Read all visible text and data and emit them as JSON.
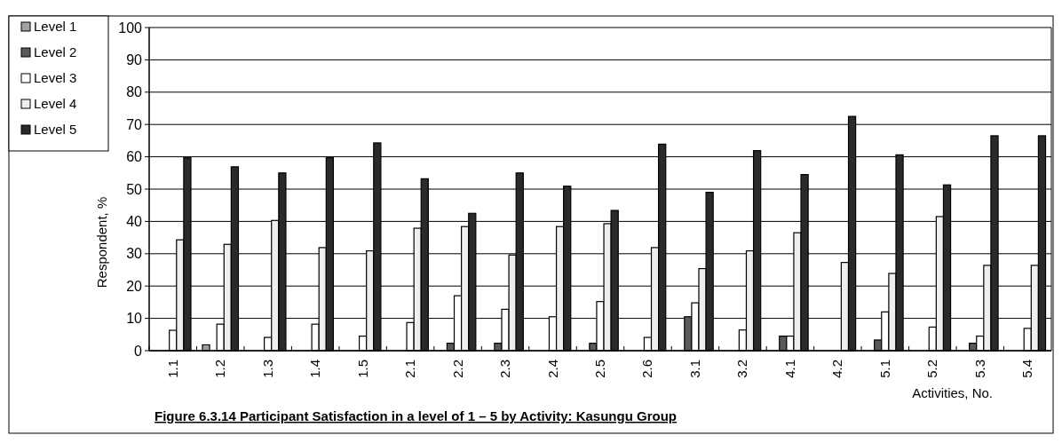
{
  "chart_data": {
    "type": "bar",
    "title": "Figure 6.3.14    Participant Satisfaction in a level of 1 – 5 by Activity: Kasungu Group",
    "xlabel": "Activities, No.",
    "ylabel": "Respondent, %",
    "categories": [
      "1.1",
      "1.2",
      "1.3",
      "1.4",
      "1.5",
      "2.1",
      "2.2",
      "2.3",
      "2.4",
      "2.5",
      "2.6",
      "3.1",
      "3.2",
      "4.1",
      "4.2",
      "5.1",
      "5.2",
      "5.3",
      "5.4"
    ],
    "series": [
      {
        "name": "Level 1",
        "color": "#a0a0a0",
        "values": [
          0,
          1.8,
          0,
          0,
          0,
          0,
          0,
          0,
          0,
          0,
          0,
          0,
          0,
          0,
          0,
          0,
          0,
          0,
          0
        ]
      },
      {
        "name": "Level 2",
        "color": "#5a5a5a",
        "values": [
          0,
          0,
          0,
          0,
          0,
          0,
          2.3,
          2.3,
          0,
          2.3,
          0,
          10.5,
          0,
          4.5,
          0,
          3.3,
          0,
          2.3,
          0
        ]
      },
      {
        "name": "Level 3",
        "color": "#ffffff",
        "values": [
          6.3,
          8.2,
          4.1,
          8.2,
          4.5,
          8.7,
          17,
          12.8,
          10.5,
          15.2,
          4.1,
          14.8,
          6.4,
          4.5,
          0,
          12,
          7.3,
          4.5,
          6.9
        ]
      },
      {
        "name": "Level 4",
        "color": "#eeeeee",
        "values": [
          34.3,
          32.9,
          40.3,
          31.9,
          30.9,
          37.9,
          38.4,
          29.6,
          38.4,
          39.3,
          31.9,
          25.4,
          30.9,
          36.5,
          27.3,
          23.9,
          41.5,
          26.4,
          26.4
        ]
      },
      {
        "name": "Level 5",
        "color": "#2a2a2a",
        "values": [
          59.7,
          56.9,
          55,
          59.7,
          64.3,
          53.2,
          42.5,
          55,
          50.9,
          43.4,
          63.9,
          49,
          61.9,
          54.5,
          72.5,
          60.6,
          51.3,
          66.5,
          66.5
        ]
      }
    ],
    "ylim": [
      0,
      100
    ],
    "yticks": [
      0,
      10,
      20,
      30,
      40,
      50,
      60,
      70,
      80,
      90,
      100
    ],
    "grid": "y",
    "legend": "top left"
  }
}
